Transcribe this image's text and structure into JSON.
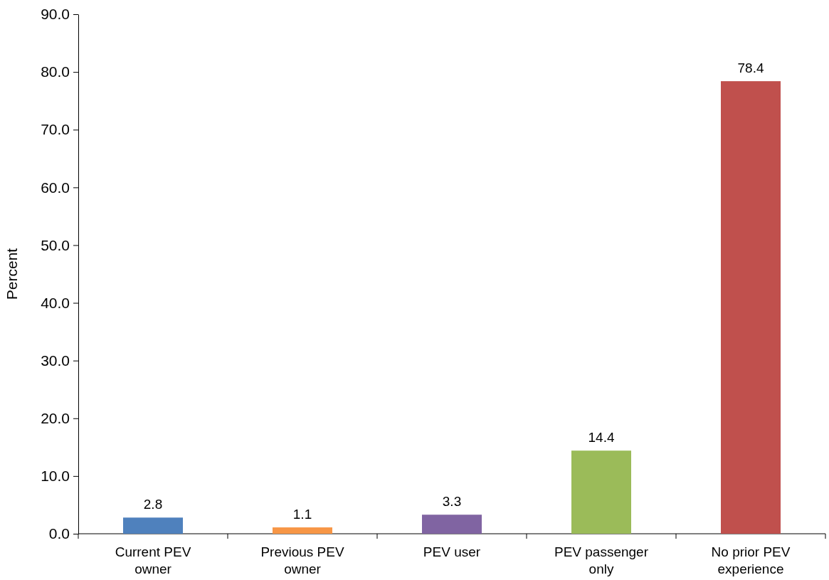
{
  "chart_data": {
    "type": "bar",
    "ylabel": "Percent",
    "categories": [
      "Current PEV owner",
      "Previous PEV owner",
      "PEV user",
      "PEV passenger only",
      "No prior PEV experience"
    ],
    "values": [
      2.8,
      1.1,
      3.3,
      14.4,
      78.4
    ],
    "colors": [
      "#4f81bd",
      "#f79646",
      "#8064a2",
      "#9bbb59",
      "#c0504d"
    ],
    "ylim": [
      0,
      90
    ],
    "yticks": [
      {
        "value": 0,
        "label": "0.0"
      },
      {
        "value": 10,
        "label": "10.0"
      },
      {
        "value": 20,
        "label": "20.0"
      },
      {
        "value": 30,
        "label": "30.0"
      },
      {
        "value": 40,
        "label": "40.0"
      },
      {
        "value": 50,
        "label": "50.0"
      },
      {
        "value": 60,
        "label": "60.0"
      },
      {
        "value": 70,
        "label": "70.0"
      },
      {
        "value": 80,
        "label": "80.0"
      },
      {
        "value": 90,
        "label": "90.0"
      }
    ],
    "data_labels": true,
    "grid": false
  }
}
